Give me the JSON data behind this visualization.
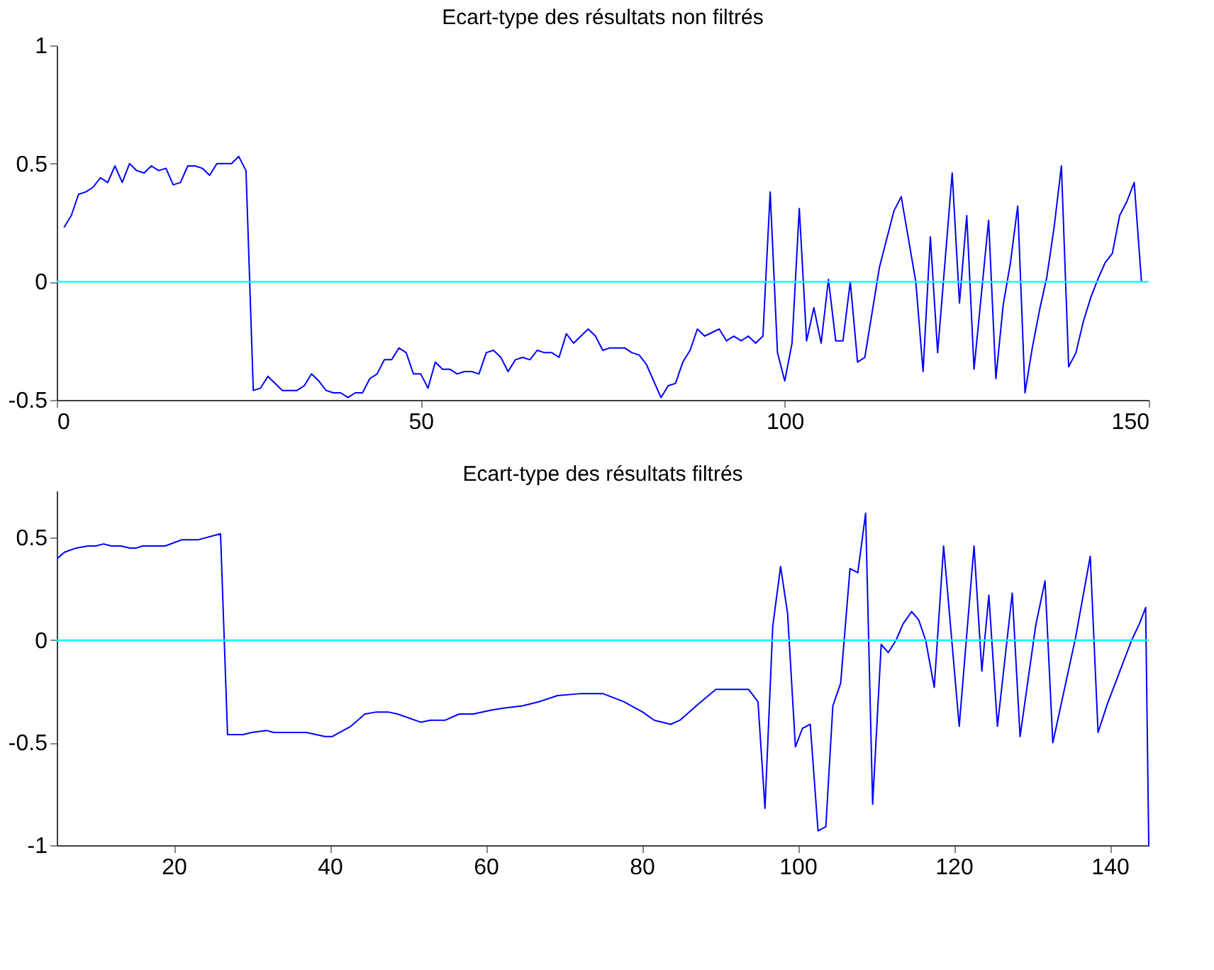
{
  "chart_data": [
    {
      "type": "line",
      "title": "Ecart-type des résultats non filtrés",
      "xlim": [
        0,
        150
      ],
      "ylim": [
        -0.5,
        1
      ],
      "xticks": [
        0,
        50,
        100,
        150
      ],
      "yticks": [
        -0.5,
        0,
        0.5,
        1
      ],
      "x": [
        1,
        2,
        3,
        4,
        5,
        6,
        7,
        8,
        9,
        10,
        11,
        12,
        13,
        14,
        15,
        16,
        17,
        18,
        19,
        20,
        21,
        22,
        23,
        24,
        25,
        26,
        27,
        28,
        29,
        30,
        31,
        32,
        33,
        34,
        35,
        36,
        37,
        38,
        39,
        40,
        41,
        42,
        43,
        44,
        45,
        46,
        47,
        48,
        49,
        50,
        51,
        52,
        53,
        54,
        55,
        56,
        57,
        58,
        59,
        60,
        61,
        62,
        63,
        64,
        65,
        66,
        67,
        68,
        69,
        70,
        71,
        73,
        74,
        75,
        76,
        78,
        79,
        80,
        81,
        83,
        84,
        85,
        86,
        87,
        88,
        89,
        91,
        92,
        93,
        94,
        95,
        96,
        97,
        98,
        99,
        100,
        101,
        102,
        103,
        104,
        105,
        106,
        107,
        108,
        109,
        110,
        111,
        113,
        114,
        115,
        116,
        118,
        119,
        120,
        121,
        123,
        124,
        125,
        126,
        128,
        129,
        130,
        131,
        132,
        133,
        134,
        135,
        136,
        137,
        138,
        139,
        140,
        141,
        142,
        143,
        144,
        145,
        146,
        147,
        148,
        149
      ],
      "series": [
        {
          "color": "#0000ff",
          "values": [
            0.23,
            0.28,
            0.37,
            0.38,
            0.4,
            0.44,
            0.42,
            0.49,
            0.42,
            0.5,
            0.47,
            0.46,
            0.49,
            0.47,
            0.48,
            0.41,
            0.42,
            0.49,
            0.49,
            0.48,
            0.45,
            0.5,
            0.5,
            0.5,
            0.53,
            0.47,
            -0.46,
            -0.45,
            -0.4,
            -0.43,
            -0.46,
            -0.46,
            -0.46,
            -0.44,
            -0.39,
            -0.42,
            -0.46,
            -0.47,
            -0.47,
            -0.49,
            -0.47,
            -0.47,
            -0.41,
            -0.39,
            -0.33,
            -0.33,
            -0.28,
            -0.3,
            -0.39,
            -0.39,
            -0.45,
            -0.34,
            -0.37,
            -0.37,
            -0.39,
            -0.38,
            -0.38,
            -0.39,
            -0.3,
            -0.29,
            -0.32,
            -0.38,
            -0.33,
            -0.32,
            -0.33,
            -0.29,
            -0.3,
            -0.3,
            -0.32,
            -0.22,
            -0.26,
            -0.2,
            -0.23,
            -0.29,
            -0.28,
            -0.28,
            -0.3,
            -0.31,
            -0.35,
            -0.49,
            -0.44,
            -0.43,
            -0.34,
            -0.29,
            -0.2,
            -0.23,
            -0.2,
            -0.25,
            -0.23,
            -0.25,
            -0.23,
            -0.26,
            -0.23,
            0.38,
            -0.3,
            -0.42,
            -0.26,
            0.31,
            -0.25,
            -0.11,
            -0.26,
            0.01,
            -0.25,
            -0.25,
            0.0,
            -0.34,
            -0.32,
            0.06,
            0.18,
            0.3,
            0.36,
            0.0,
            -0.38,
            0.19,
            -0.3,
            0.46,
            -0.09,
            0.28,
            -0.37,
            0.26,
            -0.41,
            -0.1,
            0.08,
            0.32,
            -0.47,
            -0.28,
            -0.12,
            0.02,
            0.23,
            0.49,
            -0.36,
            -0.3,
            -0.17,
            -0.07,
            0.01,
            0.08,
            0.12,
            0.28,
            0.34,
            0.42,
            0.0
          ]
        }
      ],
      "ref_lines": [
        {
          "axis": "y",
          "value": 0,
          "color": "#00ffff"
        }
      ]
    },
    {
      "type": "line",
      "title": "Ecart-type des résultats filtrés",
      "xlim": [
        5,
        145
      ],
      "ylim": [
        -1,
        0.73
      ],
      "xticks": [
        20,
        40,
        60,
        80,
        100,
        120,
        140
      ],
      "yticks": [
        -1,
        -0.5,
        0,
        0.5
      ],
      "x": [
        5.1,
        6,
        7.5,
        9,
        10,
        11,
        12,
        13.2,
        14.4,
        15.2,
        16,
        18.9,
        21,
        23.1,
        26,
        26.9,
        28.9,
        30,
        31.9,
        32.8,
        37,
        39.4,
        40.3,
        42.7,
        44.5,
        46,
        47.5,
        48.7,
        51.7,
        52.9,
        54.8,
        56.6,
        58.4,
        60.8,
        62.6,
        64.7,
        66.8,
        69.2,
        72.2,
        75,
        77.7,
        80.1,
        81.6,
        83.7,
        84.9,
        87.3,
        89.5,
        93.7,
        94.9,
        95.8,
        96.8,
        97.8,
        98.7,
        99.7,
        100.6,
        101.6,
        102.6,
        103.6,
        104.5,
        105.5,
        106.7,
        107.7,
        108.7,
        109.6,
        110.7,
        111.6,
        112.6,
        113.5,
        114.6,
        115.5,
        116.4,
        117.5,
        118.7,
        120.7,
        122.6,
        123.6,
        124.5,
        125.6,
        127.5,
        128.5,
        130.5,
        131.7,
        132.7,
        135.6,
        137.5,
        138.5,
        139.7,
        141.3,
        142.8,
        143.8,
        144.6,
        145
      ],
      "series": [
        {
          "color": "#0000ff",
          "values": [
            0.4,
            0.43,
            0.45,
            0.46,
            0.46,
            0.47,
            0.46,
            0.46,
            0.45,
            0.45,
            0.46,
            0.46,
            0.49,
            0.49,
            0.52,
            -0.46,
            -0.46,
            -0.45,
            -0.44,
            -0.45,
            -0.45,
            -0.47,
            -0.47,
            -0.42,
            -0.36,
            -0.35,
            -0.35,
            -0.36,
            -0.4,
            -0.39,
            -0.39,
            -0.36,
            -0.36,
            -0.34,
            -0.33,
            -0.32,
            -0.3,
            -0.27,
            -0.26,
            -0.26,
            -0.3,
            -0.35,
            -0.39,
            -0.41,
            -0.39,
            -0.31,
            -0.24,
            -0.24,
            -0.3,
            -0.82,
            0.07,
            0.36,
            0.13,
            -0.52,
            -0.43,
            -0.41,
            -0.93,
            -0.91,
            -0.32,
            -0.21,
            0.35,
            0.33,
            0.62,
            -0.8,
            -0.02,
            -0.06,
            0.0,
            0.08,
            0.14,
            0.1,
            0.0,
            -0.23,
            0.46,
            -0.42,
            0.46,
            -0.15,
            0.22,
            -0.42,
            0.23,
            -0.47,
            0.07,
            0.29,
            -0.5,
            0.01,
            0.41,
            -0.45,
            -0.31,
            -0.15,
            0.0,
            0.08,
            0.16,
            -1.0
          ]
        }
      ],
      "ref_lines": [
        {
          "axis": "y",
          "value": 0,
          "color": "#00ffff"
        }
      ]
    }
  ]
}
